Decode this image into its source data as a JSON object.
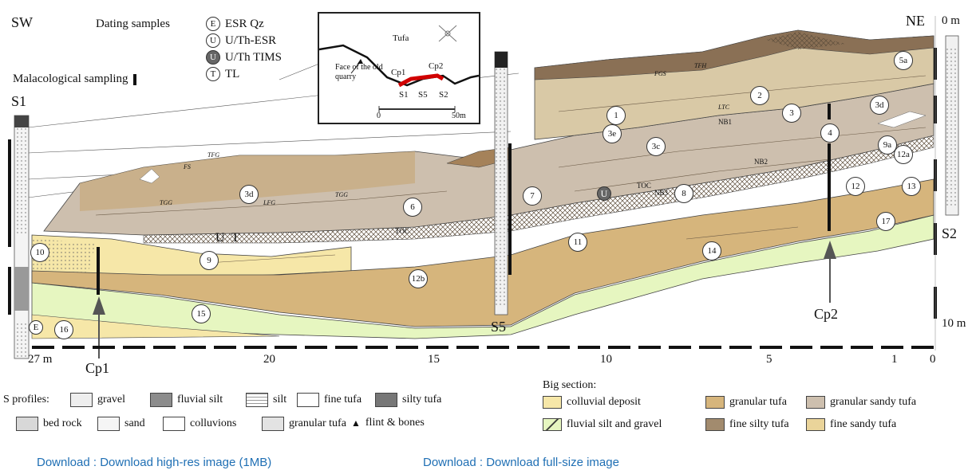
{
  "header": {
    "sw": "SW",
    "ne": "NE",
    "dating_title": "Dating samples",
    "dating": [
      {
        "code": "E",
        "label": "ESR Qz"
      },
      {
        "code": "U",
        "label": "U/Th-ESR"
      },
      {
        "code": "U",
        "label": "U/Th TIMS"
      },
      {
        "code": "T",
        "label": "TL"
      }
    ],
    "malacological": "Malacological sampling"
  },
  "inset": {
    "tufa": "Tufa",
    "face": "Face of the old quarry",
    "cp1": "Cp1",
    "cp2": "Cp2",
    "s1": "S1",
    "s5": "S5",
    "s2": "S2",
    "scale_start": "0",
    "scale_end": "50m"
  },
  "profiles": {
    "s1": "S1",
    "s5": "S5",
    "s2": "S2",
    "cp1": "Cp1",
    "cp2": "Cp2",
    "top_m": "0 m",
    "bottom_m": "10 m",
    "left_m": "27 m"
  },
  "axis": {
    "ticks": [
      "20",
      "15",
      "10",
      "5",
      "1",
      "0"
    ]
  },
  "section_labels": {
    "tfg": "TFG",
    "fs": "FS",
    "tgg": "TGG",
    "lfg": "LFG",
    "fgs": "FGS",
    "tfh": "TFH",
    "ltc": "LTC",
    "nb1": "NB1",
    "nb2": "NB2",
    "nb3": "NB3",
    "toc": "TOC",
    "u": "U",
    "t": "T",
    "e": "E"
  },
  "units": [
    "1",
    "2",
    "3",
    "3c",
    "3d",
    "3e",
    "4",
    "5a",
    "6",
    "7",
    "8",
    "9",
    "9a",
    "10",
    "11",
    "12",
    "12a",
    "12b",
    "13",
    "14",
    "15",
    "16",
    "17"
  ],
  "legend_s": {
    "title": "S profiles:",
    "items": [
      "gravel",
      "fluvial silt",
      "silt",
      "fine tufa",
      "silty tufa",
      "bed rock",
      "sand",
      "colluvions",
      "granular tufa",
      "flint & bones"
    ]
  },
  "legend_big": {
    "title": "Big section:",
    "items": [
      {
        "label": "colluvial deposit",
        "color": "#f6e7a8"
      },
      {
        "label": "granular tufa",
        "color": "#d6b57c"
      },
      {
        "label": "granular sandy tufa",
        "color": "#cdbfae"
      },
      {
        "label": "fluvial silt and gravel",
        "color": "#e6f6c0"
      },
      {
        "label": "fine silty tufa",
        "color": "#a28b6e"
      },
      {
        "label": "fine sandy tufa",
        "color": "#ead49a"
      }
    ]
  },
  "links": {
    "high_res": "Download : Download high-res image (1MB)",
    "full_size": "Download : Download full-size image"
  }
}
